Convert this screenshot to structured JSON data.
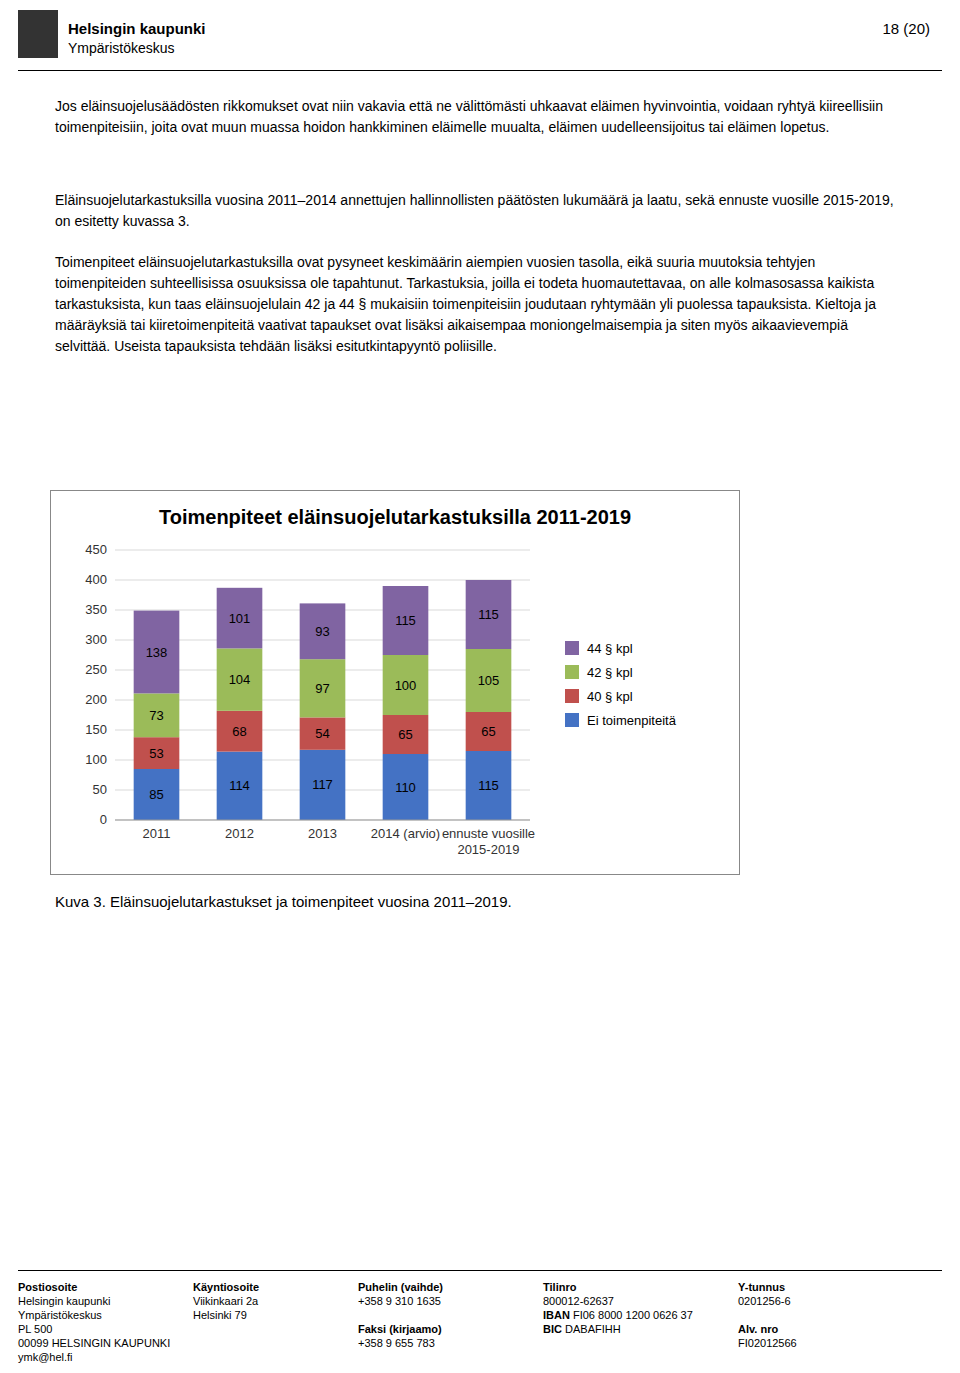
{
  "page": {
    "header_org1": "Helsingin kaupunki",
    "header_org2": "Ympäristökeskus",
    "header_right": "18 (20)",
    "paragraphs": [
      "Jos eläinsuojelusäädösten rikkomukset ovat niin vakavia että ne välittömästi uhkaavat eläimen hyvinvointia, voidaan ryhtyä kiireellisiin toimenpiteisiin, joita ovat muun muassa hoidon hankkiminen eläimelle muualta, eläimen uudelleensijoitus tai eläimen lopetus.",
      "Eläinsuojelutarkastuksilla vuosina 2011–2014 annettujen hallinnollisten päätösten lukumäärä ja laatu, sekä ennuste vuosille 2015-2019, on esitetty kuvassa 3.",
      "Toimenpiteet eläinsuojelutarkastuksilla ovat pysyneet keskimäärin aiempien vuosien tasolla, eikä suuria muutoksia tehtyjen toimenpiteiden suhteellisissa osuuksissa ole tapahtunut. Tarkastuksia, joilla ei todeta huomautettavaa, on alle kolmasosassa kaikista tarkastuksista, kun taas eläinsuojelulain 42 ja 44 § mukaisiin toimenpiteisiin joudutaan ryhtymään yli puolessa tapauksista. Kieltoja ja määräyksiä tai kiiretoimenpiteitä vaativat tapaukset ovat lisäksi aikaisempaa moniongelmaisempia ja siten myös aikaavievempiä selvittää. Useista tapauksista tehdään lisäksi esitutkintapyyntö poliisille."
    ],
    "caption": "Kuva 3. Eläinsuojelutarkastukset ja toimenpiteet vuosina 2011–2019.",
    "footer": [
      {
        "header": "Postiosoite",
        "groups": [
          [
            "Helsingin kaupunki",
            "Ympäristökeskus",
            "PL 500",
            "00099 HELSINGIN KAUPUNKI",
            "ymk@hel.fi"
          ]
        ]
      },
      {
        "header": "Käyntiosoite",
        "groups": [
          [
            "Viikinkaari 2a",
            "Helsinki 79"
          ]
        ]
      },
      {
        "header": "Puhelin (vaihde)",
        "groups": [
          [
            "+358 9 310 1635"
          ],
          [
            {
              "label": "Faksi (kirjaamo)"
            },
            "+358 9 655 783"
          ]
        ]
      },
      {
        "header": "Tilinro",
        "groups": [
          [
            "800012-62637",
            {
              "label": "IBAN",
              "text": "FI06 8000 1200 0626 37"
            },
            {
              "label": "BIC",
              "text": "DABAFIHH"
            }
          ]
        ]
      },
      {
        "header": "Y-tunnus",
        "groups": [
          [
            "0201256-6"
          ],
          [
            {
              "label": "Alv. nro"
            },
            "FI02012566"
          ]
        ]
      }
    ]
  },
  "chart_data": {
    "type": "bar",
    "stacked": true,
    "title": "Toimenpiteet eläinsuojelutarkastuksilla 2011-2019",
    "categories": [
      "2011",
      "2012",
      "2013",
      "2014 (arvio)",
      "ennuste vuosille\n2015-2019"
    ],
    "series": [
      {
        "name": "Ei toimenpiteitä",
        "color": "#4472C4",
        "values": [
          85,
          114,
          117,
          110,
          115
        ]
      },
      {
        "name": "40 § kpl",
        "color": "#C0504D",
        "values": [
          53,
          68,
          54,
          65,
          65
        ]
      },
      {
        "name": "42 § kpl",
        "color": "#9BBB59",
        "values": [
          73,
          104,
          97,
          100,
          105
        ]
      },
      {
        "name": "44 § kpl",
        "color": "#8064A2",
        "values": [
          138,
          101,
          93,
          115,
          115
        ]
      }
    ],
    "ylim": [
      0,
      450
    ],
    "yticks": [
      0,
      50,
      100,
      150,
      200,
      250,
      300,
      350,
      400,
      450
    ],
    "grid": true,
    "legend": "right",
    "data_labels": true
  }
}
